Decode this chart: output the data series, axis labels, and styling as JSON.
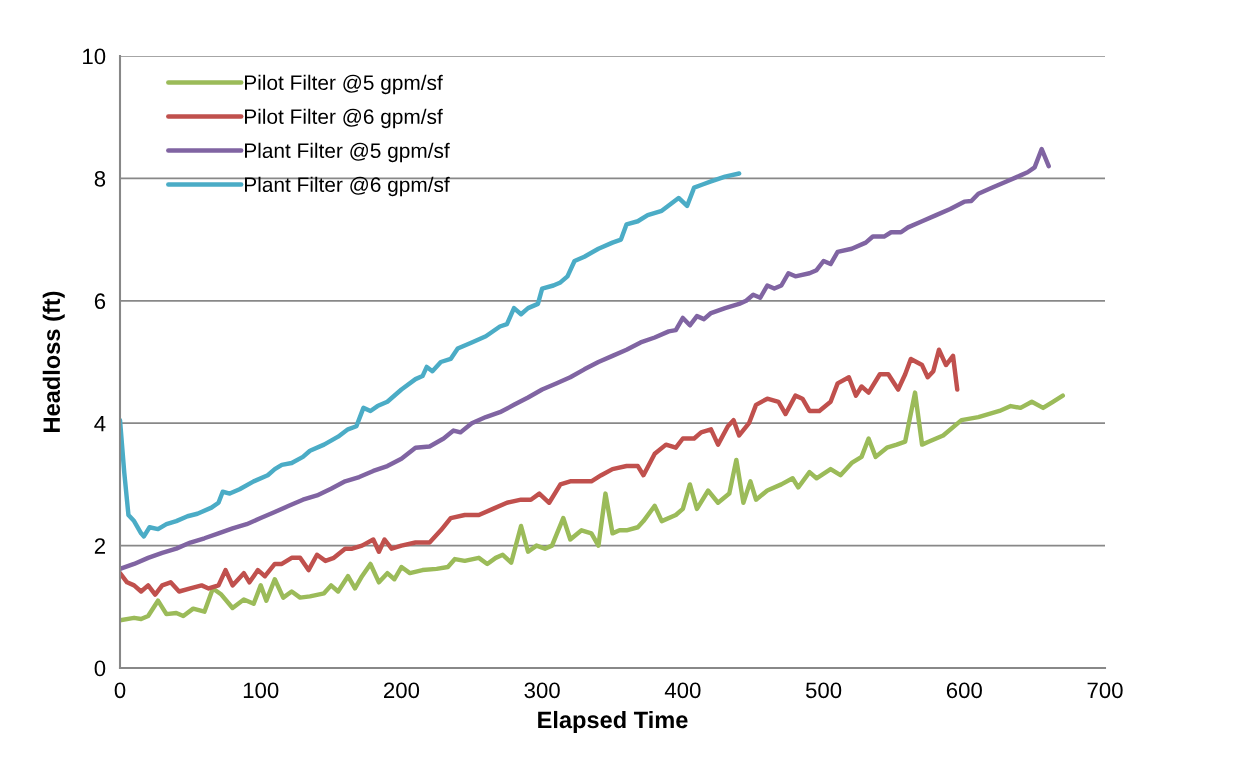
{
  "chart_data": {
    "type": "line",
    "xlabel": "Elapsed Time",
    "ylabel": "Headloss (ft)",
    "xlim": [
      0,
      700
    ],
    "xticks": [
      0,
      100,
      200,
      300,
      400,
      500,
      600,
      700
    ],
    "ylim": [
      0,
      10
    ],
    "yticks": [
      0,
      2,
      4,
      6,
      8,
      10
    ],
    "grid": "y",
    "legend": "top left",
    "marker": "none",
    "line_style": "solid",
    "series": [
      {
        "name": "Pilot Filter @5 gpm/sf",
        "color": "#9bbb59",
        "x": [
          0,
          10,
          15,
          20,
          27,
          33,
          40,
          45,
          52,
          60,
          66,
          72,
          80,
          88,
          95,
          100,
          104,
          110,
          116,
          122,
          128,
          135,
          145,
          150,
          155,
          162,
          167,
          172,
          178,
          184,
          190,
          195,
          200,
          206,
          215,
          225,
          233,
          238,
          245,
          255,
          261,
          267,
          272,
          278,
          285,
          290,
          296,
          302,
          307,
          315,
          320,
          328,
          335,
          340,
          345,
          350,
          355,
          360,
          368,
          372,
          380,
          385,
          395,
          400,
          405,
          410,
          418,
          425,
          433,
          438,
          443,
          448,
          452,
          460,
          470,
          478,
          482,
          490,
          495,
          505,
          512,
          520,
          527,
          532,
          537,
          545,
          552,
          558,
          565,
          570,
          575,
          585,
          598,
          610,
          625,
          633,
          640,
          648,
          656,
          663,
          670
        ],
        "values": [
          0.78,
          0.82,
          0.8,
          0.85,
          1.1,
          0.88,
          0.9,
          0.85,
          0.97,
          0.92,
          1.3,
          1.2,
          0.98,
          1.12,
          1.05,
          1.35,
          1.1,
          1.45,
          1.15,
          1.25,
          1.15,
          1.17,
          1.22,
          1.35,
          1.25,
          1.5,
          1.3,
          1.5,
          1.7,
          1.4,
          1.55,
          1.45,
          1.65,
          1.55,
          1.6,
          1.62,
          1.65,
          1.78,
          1.75,
          1.8,
          1.7,
          1.8,
          1.85,
          1.72,
          2.32,
          1.9,
          2.0,
          1.95,
          2.0,
          2.45,
          2.1,
          2.25,
          2.2,
          2.0,
          2.85,
          2.2,
          2.25,
          2.25,
          2.3,
          2.4,
          2.65,
          2.4,
          2.5,
          2.6,
          3.0,
          2.6,
          2.9,
          2.7,
          2.85,
          3.4,
          2.7,
          3.05,
          2.75,
          2.9,
          3.0,
          3.1,
          2.95,
          3.2,
          3.1,
          3.25,
          3.15,
          3.35,
          3.45,
          3.75,
          3.45,
          3.6,
          3.65,
          3.7,
          4.5,
          3.65,
          3.7,
          3.8,
          4.05,
          4.1,
          4.2,
          4.28,
          4.25,
          4.35,
          4.25,
          4.35,
          4.45
        ]
      },
      {
        "name": "Pilot Filter @6 gpm/sf",
        "color": "#c0504d",
        "x": [
          0,
          5,
          10,
          15,
          20,
          25,
          30,
          36,
          42,
          50,
          58,
          63,
          70,
          75,
          80,
          88,
          92,
          98,
          103,
          110,
          115,
          122,
          128,
          134,
          140,
          146,
          152,
          160,
          165,
          172,
          180,
          184,
          188,
          193,
          200,
          210,
          220,
          228,
          235,
          245,
          255,
          265,
          275,
          285,
          292,
          298,
          305,
          313,
          320,
          327,
          335,
          342,
          350,
          360,
          368,
          372,
          380,
          388,
          395,
          400,
          408,
          413,
          420,
          425,
          432,
          436,
          440,
          447,
          452,
          460,
          468,
          473,
          480,
          485,
          490,
          497,
          505,
          510,
          518,
          523,
          527,
          532,
          540,
          546,
          553,
          558,
          562,
          570,
          574,
          578,
          582,
          587,
          592,
          595
        ],
        "values": [
          1.55,
          1.4,
          1.35,
          1.25,
          1.35,
          1.2,
          1.35,
          1.4,
          1.25,
          1.3,
          1.35,
          1.3,
          1.35,
          1.6,
          1.35,
          1.55,
          1.4,
          1.6,
          1.5,
          1.7,
          1.7,
          1.8,
          1.8,
          1.6,
          1.85,
          1.75,
          1.8,
          1.95,
          1.95,
          2.0,
          2.1,
          1.9,
          2.1,
          1.95,
          2.0,
          2.05,
          2.05,
          2.25,
          2.45,
          2.5,
          2.5,
          2.6,
          2.7,
          2.75,
          2.75,
          2.85,
          2.7,
          3.0,
          3.05,
          3.05,
          3.05,
          3.15,
          3.25,
          3.3,
          3.3,
          3.15,
          3.5,
          3.65,
          3.6,
          3.75,
          3.75,
          3.85,
          3.9,
          3.65,
          3.95,
          4.05,
          3.8,
          4.0,
          4.3,
          4.4,
          4.35,
          4.15,
          4.45,
          4.4,
          4.2,
          4.2,
          4.35,
          4.65,
          4.75,
          4.45,
          4.6,
          4.5,
          4.8,
          4.8,
          4.55,
          4.8,
          5.05,
          4.95,
          4.75,
          4.85,
          5.2,
          4.95,
          5.1,
          4.55
        ]
      },
      {
        "name": "Plant Filter @5 gpm/sf",
        "color": "#8064a2",
        "x": [
          0,
          10,
          20,
          30,
          40,
          50,
          60,
          70,
          80,
          90,
          100,
          110,
          120,
          130,
          140,
          150,
          160,
          170,
          180,
          190,
          200,
          210,
          220,
          230,
          237,
          242,
          250,
          260,
          270,
          280,
          290,
          300,
          310,
          320,
          330,
          340,
          350,
          360,
          370,
          380,
          390,
          395,
          400,
          405,
          410,
          415,
          420,
          430,
          440,
          445,
          450,
          455,
          460,
          465,
          470,
          475,
          480,
          490,
          495,
          500,
          505,
          510,
          520,
          530,
          535,
          543,
          548,
          555,
          560,
          570,
          580,
          590,
          600,
          605,
          610,
          620,
          630,
          640,
          645,
          650,
          655,
          660
        ],
        "values": [
          1.62,
          1.7,
          1.8,
          1.88,
          1.95,
          2.05,
          2.12,
          2.2,
          2.28,
          2.35,
          2.45,
          2.55,
          2.65,
          2.75,
          2.82,
          2.93,
          3.05,
          3.12,
          3.22,
          3.3,
          3.42,
          3.6,
          3.62,
          3.75,
          3.88,
          3.85,
          4.0,
          4.1,
          4.18,
          4.3,
          4.42,
          4.55,
          4.65,
          4.75,
          4.88,
          5.0,
          5.1,
          5.2,
          5.32,
          5.4,
          5.5,
          5.52,
          5.72,
          5.6,
          5.75,
          5.7,
          5.8,
          5.88,
          5.95,
          6.0,
          6.1,
          6.05,
          6.25,
          6.2,
          6.25,
          6.45,
          6.4,
          6.45,
          6.5,
          6.65,
          6.6,
          6.8,
          6.85,
          6.95,
          7.05,
          7.05,
          7.12,
          7.12,
          7.2,
          7.3,
          7.4,
          7.5,
          7.62,
          7.63,
          7.75,
          7.85,
          7.95,
          8.05,
          8.1,
          8.18,
          8.48,
          8.2
        ]
      },
      {
        "name": "Plant Filter @6 gpm/sf",
        "color": "#4bacc6",
        "x": [
          0,
          3,
          6,
          10,
          15,
          17,
          21,
          27,
          33,
          40,
          48,
          55,
          65,
          70,
          73,
          78,
          85,
          95,
          105,
          110,
          115,
          122,
          130,
          135,
          145,
          155,
          162,
          168,
          173,
          178,
          183,
          190,
          200,
          210,
          215,
          218,
          222,
          228,
          235,
          240,
          250,
          260,
          270,
          275,
          280,
          285,
          290,
          297,
          300,
          308,
          313,
          318,
          323,
          330,
          340,
          350,
          356,
          360,
          368,
          375,
          385,
          397,
          403,
          408,
          414,
          420,
          430,
          440
        ],
        "values": [
          4.05,
          3.2,
          2.5,
          2.4,
          2.2,
          2.15,
          2.3,
          2.27,
          2.35,
          2.4,
          2.48,
          2.52,
          2.62,
          2.7,
          2.88,
          2.85,
          2.92,
          3.05,
          3.15,
          3.25,
          3.32,
          3.35,
          3.45,
          3.55,
          3.65,
          3.78,
          3.9,
          3.95,
          4.25,
          4.2,
          4.28,
          4.35,
          4.55,
          4.72,
          4.77,
          4.92,
          4.85,
          5.0,
          5.05,
          5.22,
          5.32,
          5.42,
          5.58,
          5.62,
          5.88,
          5.78,
          5.88,
          5.95,
          6.2,
          6.25,
          6.3,
          6.4,
          6.65,
          6.72,
          6.85,
          6.95,
          7.0,
          7.25,
          7.3,
          7.4,
          7.47,
          7.68,
          7.55,
          7.85,
          7.9,
          7.95,
          8.03,
          8.08
        ]
      }
    ]
  }
}
